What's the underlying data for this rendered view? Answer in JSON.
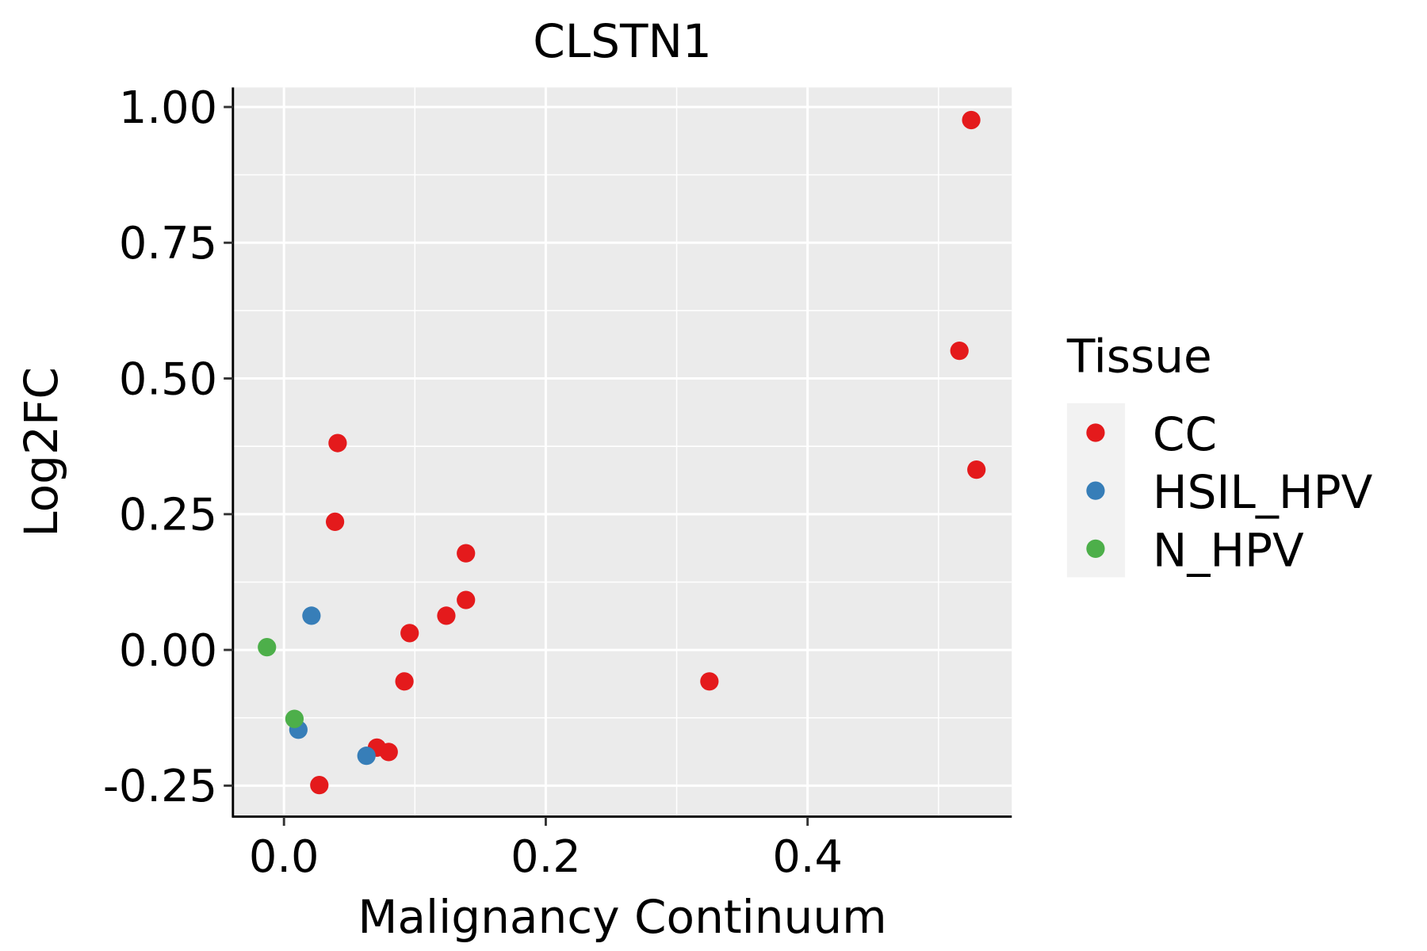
{
  "chart_data": {
    "type": "scatter",
    "title": "CLSTN1",
    "xlabel": "Malignancy Continuum",
    "ylabel": "Log2FC",
    "xlim": [
      -0.039,
      0.556
    ],
    "ylim": [
      -0.307,
      1.036
    ],
    "xticks": [
      0.0,
      0.2,
      0.4
    ],
    "xtick_labels": [
      "0.0",
      "0.2",
      "0.4"
    ],
    "yticks": [
      -0.25,
      0.0,
      0.25,
      0.5,
      0.75,
      1.0
    ],
    "ytick_labels": [
      "-0.25",
      "0.00",
      "0.25",
      "0.50",
      "0.75",
      "1.00"
    ],
    "grid": true,
    "legend": {
      "title": "Tissue",
      "placement": "right"
    },
    "series": [
      {
        "name": "CC",
        "color": "#E41A1C",
        "points": [
          [
            0.525,
            0.976
          ],
          [
            0.516,
            0.551
          ],
          [
            0.529,
            0.332
          ],
          [
            0.041,
            0.381
          ],
          [
            0.039,
            0.236
          ],
          [
            0.139,
            0.178
          ],
          [
            0.139,
            0.092
          ],
          [
            0.124,
            0.063
          ],
          [
            0.096,
            0.031
          ],
          [
            0.092,
            -0.058
          ],
          [
            0.325,
            -0.058
          ],
          [
            0.071,
            -0.18
          ],
          [
            0.08,
            -0.188
          ],
          [
            0.027,
            -0.249
          ]
        ]
      },
      {
        "name": "HSIL_HPV",
        "color": "#377EB8",
        "points": [
          [
            0.021,
            0.063
          ],
          [
            0.011,
            -0.147
          ],
          [
            0.063,
            -0.195
          ]
        ]
      },
      {
        "name": "N_HPV",
        "color": "#4DAF4A",
        "points": [
          [
            -0.013,
            0.005
          ],
          [
            0.008,
            -0.127
          ]
        ]
      }
    ]
  }
}
